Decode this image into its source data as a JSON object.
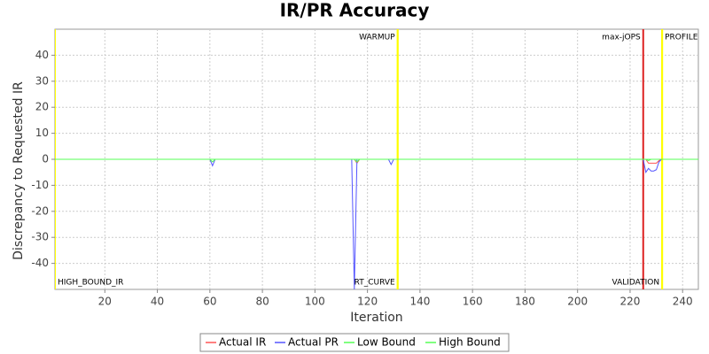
{
  "chart_data": {
    "type": "line",
    "title": "IR/PR Accuracy",
    "x_label": "Iteration",
    "y_label": "Discrepancy to Requested IR",
    "xlim": [
      1,
      246
    ],
    "ylim": [
      -50,
      50
    ],
    "xticks": [
      20,
      40,
      60,
      80,
      100,
      120,
      140,
      160,
      180,
      200,
      220,
      240
    ],
    "yticks": [
      -40,
      -30,
      -20,
      -10,
      0,
      10,
      20,
      30,
      40
    ],
    "grid": true,
    "legend": "bottom",
    "x": [
      1,
      60,
      61,
      62,
      114,
      115,
      116,
      117,
      128,
      129,
      130,
      225,
      226,
      227,
      228,
      229,
      230,
      231,
      232,
      246
    ],
    "series": [
      {
        "name": "Actual IR",
        "color": "#ff5555",
        "values": [
          0,
          0,
          0,
          0,
          0,
          0,
          -1.5,
          0,
          0,
          0,
          0,
          0,
          0,
          -1.5,
          -1.5,
          -1.5,
          -1.5,
          -0.5,
          0,
          0
        ]
      },
      {
        "name": "Actual PR",
        "color": "#5555ff",
        "values": [
          0,
          0,
          -2.5,
          0,
          0,
          -50,
          0,
          0,
          0,
          -2,
          0,
          0,
          -5,
          -3.5,
          -4.5,
          -4.5,
          -4,
          -1,
          0,
          0
        ]
      },
      {
        "name": "Low Bound",
        "color": "#55ff55",
        "values": [
          0,
          0,
          -1,
          0,
          0,
          0,
          -1,
          0,
          0,
          0,
          0,
          0,
          0,
          -0.5,
          0,
          0,
          0,
          0,
          0,
          0
        ]
      },
      {
        "name": "High Bound",
        "color": "#55ff55",
        "values": [
          0,
          0,
          0,
          0,
          0,
          0,
          0,
          0,
          0,
          0,
          0,
          0,
          0,
          0,
          0,
          0,
          0,
          0,
          0,
          0
        ]
      }
    ],
    "markers": [
      {
        "x": 1,
        "label": "HIGH_BOUND_IR",
        "color": "#ffff00",
        "position": "bottom",
        "side": "right"
      },
      {
        "x": 131.5,
        "label": "RT_CURVE",
        "color": "#ffff00",
        "position": "bottom",
        "side": "left"
      },
      {
        "x": 131.5,
        "label": "WARMUP",
        "color": "#ffff00",
        "position": "top",
        "side": "left"
      },
      {
        "x": 225,
        "label": "max-jOPS",
        "color": "#dd2222",
        "position": "top",
        "side": "left"
      },
      {
        "x": 232.2,
        "label": "VALIDATION",
        "color": "#ffff00",
        "position": "bottom",
        "side": "left"
      },
      {
        "x": 232.2,
        "label": "PROFILE",
        "color": "#ffff00",
        "position": "top",
        "side": "right"
      }
    ]
  }
}
